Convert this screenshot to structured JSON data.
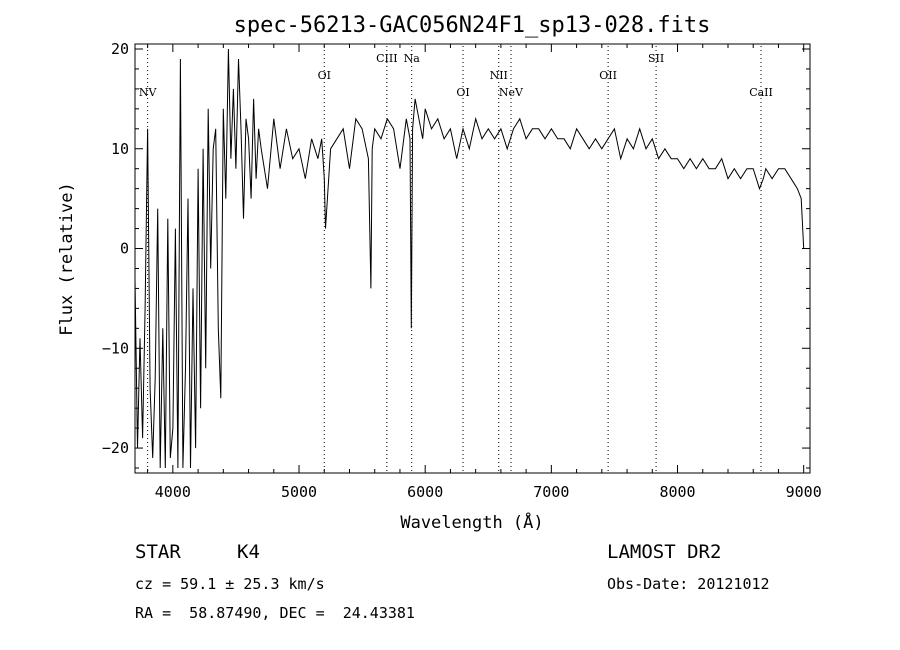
{
  "chart_data": {
    "type": "line",
    "title": "spec-56213-GAC056N24F1_sp13-028.fits",
    "xlabel": "Wavelength (Å)",
    "ylabel": "Flux (relative)",
    "xlim": [
      3700,
      9050
    ],
    "ylim": [
      -22.5,
      20.5
    ],
    "xticks": [
      4000,
      5000,
      6000,
      7000,
      8000,
      9000
    ],
    "yticks": [
      -20,
      -10,
      0,
      10,
      20
    ],
    "xticklabels": [
      "4000",
      "5000",
      "6000",
      "7000",
      "8000",
      "9000"
    ],
    "yticklabels": [
      "−20",
      "−10",
      "0",
      "10",
      "20"
    ],
    "grid": false,
    "series": [
      {
        "x": [
          3700,
          3720,
          3740,
          3760,
          3780,
          3800,
          3820,
          3840,
          3860,
          3880,
          3900,
          3920,
          3940,
          3960,
          3980,
          4000,
          4020,
          4040,
          4060,
          4080,
          4100,
          4120,
          4140,
          4160,
          4180,
          4200,
          4220,
          4240,
          4260,
          4280,
          4300,
          4320,
          4340,
          4360,
          4380,
          4400,
          4420,
          4440,
          4460,
          4480,
          4500,
          4520,
          4540,
          4560,
          4580,
          4600,
          4620,
          4640,
          4660,
          4680,
          4700,
          4750,
          4800,
          4850,
          4900,
          4950,
          5000,
          5050,
          5100,
          5150,
          5180,
          5200,
          5210,
          5250,
          5300,
          5350,
          5400,
          5450,
          5500,
          5550,
          5570,
          5580,
          5600,
          5650,
          5700,
          5750,
          5800,
          5850,
          5880,
          5890,
          5900,
          5920,
          5950,
          5980,
          6000,
          6050,
          6100,
          6150,
          6200,
          6250,
          6300,
          6350,
          6400,
          6450,
          6500,
          6550,
          6600,
          6650,
          6700,
          6750,
          6800,
          6850,
          6900,
          6950,
          7000,
          7050,
          7100,
          7150,
          7200,
          7250,
          7300,
          7350,
          7400,
          7450,
          7500,
          7550,
          7600,
          7650,
          7700,
          7750,
          7800,
          7850,
          7900,
          7950,
          8000,
          8050,
          8100,
          8150,
          8200,
          8250,
          8300,
          8350,
          8400,
          8450,
          8500,
          8550,
          8600,
          8650,
          8680,
          8700,
          8750,
          8800,
          8850,
          8900,
          8950,
          8980,
          9000
        ],
        "y": [
          -3,
          -20,
          -9,
          -19,
          -6,
          12,
          -14,
          -21,
          -13,
          4,
          -22,
          -8,
          -22,
          3,
          -21,
          -18,
          2,
          -22,
          19,
          -22,
          -12,
          5,
          -22,
          -4,
          -20,
          8,
          -16,
          10,
          -12,
          14,
          -2,
          10,
          12,
          -8,
          -15,
          14,
          5,
          20,
          9,
          16,
          8,
          19,
          12,
          3,
          13,
          11,
          5,
          15,
          7,
          12,
          10,
          6,
          13,
          8,
          12,
          9,
          10,
          7,
          11,
          9,
          11,
          7,
          2,
          10,
          11,
          12,
          8,
          13,
          12,
          9,
          -4,
          10,
          12,
          11,
          13,
          12,
          8,
          13,
          11,
          -8,
          12,
          15,
          13,
          11,
          14,
          12,
          13,
          11,
          12,
          9,
          12,
          10,
          13,
          11,
          12,
          11,
          12,
          10,
          12,
          13,
          11,
          12,
          12,
          11,
          12,
          11,
          11,
          10,
          12,
          11,
          10,
          11,
          10,
          11,
          12,
          9,
          11,
          10,
          12,
          10,
          11,
          9,
          10,
          9,
          9,
          8,
          9,
          8,
          9,
          8,
          8,
          9,
          7,
          8,
          7,
          8,
          8,
          6,
          7,
          8,
          7,
          8,
          8,
          7,
          6,
          5,
          0
        ]
      }
    ],
    "spectral_lines": [
      {
        "name": "NV",
        "x": 3800,
        "label_row": 2
      },
      {
        "name": "OI",
        "x": 5200,
        "label_row": 1
      },
      {
        "name": "CIII",
        "x": 5696,
        "label_row": 0
      },
      {
        "name": "Na",
        "x": 5893,
        "label_row": 0
      },
      {
        "name": "OI",
        "x": 6300,
        "label_row": 2
      },
      {
        "name": "NII",
        "x": 6583,
        "label_row": 1
      },
      {
        "name": "NeV",
        "x": 6680,
        "label_row": 2
      },
      {
        "name": "OII",
        "x": 7450,
        "label_row": 1
      },
      {
        "name": "SII",
        "x": 7830,
        "label_row": 0
      },
      {
        "name": "CaII",
        "x": 8662,
        "label_row": 2
      }
    ]
  },
  "info": {
    "class_label": "STAR",
    "subclass_label": "K4",
    "redshift_text": "cz = 59.1 ± 25.3 km/s",
    "coords_text": "RA =  58.87490, DEC =  24.43381",
    "survey_label": "LAMOST DR2",
    "obs_date_text": "Obs-Date: 20121012"
  }
}
